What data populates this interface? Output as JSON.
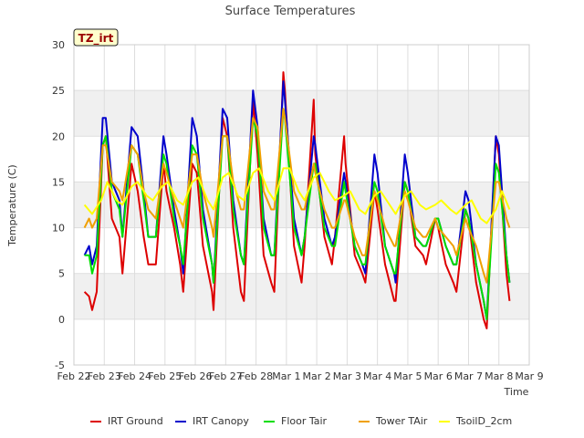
{
  "chart_data": {
    "type": "line",
    "title": "Surface Temperatures",
    "xlabel": "Time",
    "ylabel": "Temperature (C)",
    "ylim": [
      -5,
      30
    ],
    "yticks": [
      -5,
      0,
      5,
      10,
      15,
      20,
      25,
      30
    ],
    "xlim": [
      0,
      15
    ],
    "xticks": [
      {
        "v": 0,
        "label": "Feb 22"
      },
      {
        "v": 1,
        "label": "Feb 23"
      },
      {
        "v": 2,
        "label": "Feb 24"
      },
      {
        "v": 3,
        "label": "Feb 25"
      },
      {
        "v": 4,
        "label": "Feb 26"
      },
      {
        "v": 5,
        "label": "Feb 27"
      },
      {
        "v": 6,
        "label": "Feb 28"
      },
      {
        "v": 7,
        "label": "Mar 1"
      },
      {
        "v": 8,
        "label": "Mar 2"
      },
      {
        "v": 9,
        "label": "Mar 3"
      },
      {
        "v": 10,
        "label": "Mar 4"
      },
      {
        "v": 11,
        "label": "Mar 5"
      },
      {
        "v": 12,
        "label": "Mar 6"
      },
      {
        "v": 13,
        "label": "Mar 7"
      },
      {
        "v": 14,
        "label": "Mar 8"
      },
      {
        "v": 15,
        "label": "Mar 9"
      }
    ],
    "grid": true,
    "banded_background": true,
    "legend_position": "bottom",
    "annotation": "TZ_irt",
    "series": [
      {
        "name": "IRT Ground",
        "color": "#dd0000",
        "x": [
          0.35,
          0.5,
          0.6,
          0.75,
          0.95,
          1.05,
          1.25,
          1.5,
          1.6,
          1.9,
          2.1,
          2.3,
          2.45,
          2.7,
          2.95,
          3.05,
          3.3,
          3.5,
          3.6,
          3.9,
          4.05,
          4.25,
          4.55,
          4.6,
          4.9,
          5.05,
          5.25,
          5.5,
          5.6,
          5.9,
          6.05,
          6.25,
          6.5,
          6.6,
          6.9,
          6.95,
          7.25,
          7.5,
          7.6,
          7.9,
          7.95,
          8.25,
          8.5,
          8.6,
          8.9,
          8.95,
          9.25,
          9.5,
          9.6,
          9.9,
          10.0,
          10.25,
          10.55,
          10.6,
          10.9,
          11.0,
          11.25,
          11.5,
          11.6,
          11.9,
          12.0,
          12.25,
          12.5,
          12.6,
          12.9,
          13.0,
          13.25,
          13.5,
          13.6,
          13.9,
          14.0,
          14.25,
          14.35
        ],
        "y": [
          3,
          2.5,
          1,
          3,
          19,
          20,
          11,
          9,
          5,
          17,
          14,
          9,
          6,
          6,
          17,
          14,
          10,
          6,
          3,
          17,
          16,
          8,
          3,
          1,
          22,
          20,
          10,
          3,
          2,
          24,
          18,
          7,
          4,
          3,
          27,
          25,
          8,
          4,
          8,
          24,
          18,
          9,
          6,
          9,
          20,
          17,
          7,
          5,
          4,
          14,
          12,
          6,
          2,
          2,
          15,
          14,
          8,
          7,
          6,
          11,
          10,
          6,
          4,
          3,
          12,
          11,
          4,
          0,
          -1,
          20,
          18,
          5,
          2
        ]
      },
      {
        "name": "IRT Canopy",
        "color": "#0000cc",
        "x": [
          0.35,
          0.5,
          0.6,
          0.75,
          0.95,
          1.05,
          1.25,
          1.5,
          1.6,
          1.9,
          2.1,
          2.3,
          2.45,
          2.7,
          2.95,
          3.05,
          3.3,
          3.5,
          3.6,
          3.9,
          4.05,
          4.25,
          4.55,
          4.6,
          4.9,
          5.05,
          5.25,
          5.5,
          5.6,
          5.9,
          6.05,
          6.25,
          6.5,
          6.6,
          6.9,
          6.95,
          7.25,
          7.5,
          7.6,
          7.9,
          7.95,
          8.25,
          8.5,
          8.6,
          8.9,
          8.95,
          9.25,
          9.5,
          9.6,
          9.9,
          10.0,
          10.25,
          10.55,
          10.6,
          10.9,
          11.0,
          11.25,
          11.5,
          11.6,
          11.9,
          12.0,
          12.25,
          12.5,
          12.6,
          12.9,
          13.0,
          13.25,
          13.5,
          13.6,
          13.9,
          14.0,
          14.25,
          14.35
        ],
        "y": [
          7,
          8,
          6,
          8,
          22,
          22,
          15,
          13,
          9,
          21,
          20,
          14,
          9,
          9,
          20,
          18,
          12,
          8,
          5,
          22,
          20,
          12,
          6,
          4,
          23,
          22,
          13,
          7,
          6,
          25,
          21,
          11,
          7,
          7,
          26,
          24,
          11,
          7,
          9,
          20,
          19,
          11,
          8,
          9,
          16,
          15,
          8,
          6,
          5,
          18,
          16,
          8,
          5,
          4,
          18,
          16,
          9,
          8,
          8,
          11,
          11,
          8,
          6,
          6,
          14,
          13,
          6,
          2,
          0,
          20,
          19,
          7,
          4
        ]
      },
      {
        "name": "Floor Tair",
        "color": "#00dd00",
        "x": [
          0.35,
          0.5,
          0.6,
          0.75,
          0.95,
          1.05,
          1.25,
          1.5,
          1.6,
          1.9,
          2.1,
          2.3,
          2.45,
          2.7,
          2.95,
          3.05,
          3.3,
          3.5,
          3.6,
          3.9,
          4.05,
          4.25,
          4.55,
          4.6,
          4.9,
          5.05,
          5.25,
          5.5,
          5.6,
          5.9,
          6.05,
          6.25,
          6.5,
          6.6,
          6.9,
          6.95,
          7.25,
          7.5,
          7.6,
          7.9,
          7.95,
          8.25,
          8.5,
          8.6,
          8.9,
          8.95,
          9.25,
          9.5,
          9.6,
          9.9,
          10.0,
          10.25,
          10.55,
          10.6,
          10.9,
          11.0,
          11.25,
          11.5,
          11.6,
          11.9,
          12.0,
          12.25,
          12.5,
          12.6,
          12.9,
          13.0,
          13.25,
          13.5,
          13.6,
          13.9,
          14.0,
          14.25,
          14.35
        ],
        "y": [
          7,
          7,
          5,
          7,
          19,
          20,
          14,
          12,
          9,
          19,
          18,
          13,
          9,
          9,
          18,
          17,
          11,
          8,
          6,
          19,
          18,
          11,
          6,
          4,
          20,
          20,
          12,
          7,
          6,
          22,
          20,
          10,
          7,
          7,
          23,
          22,
          10,
          7,
          9,
          17,
          17,
          10,
          8,
          8,
          15,
          14,
          8,
          6,
          6,
          15,
          14,
          8,
          5,
          5,
          15,
          14,
          9,
          8,
          8,
          11,
          11,
          8,
          6,
          6,
          12,
          11,
          6,
          2,
          0,
          17,
          16,
          7,
          4
        ]
      },
      {
        "name": "Tower TAir",
        "color": "#f0a000",
        "x": [
          0.35,
          0.5,
          0.6,
          0.75,
          0.95,
          1.05,
          1.25,
          1.5,
          1.6,
          1.9,
          2.1,
          2.3,
          2.45,
          2.7,
          2.95,
          3.05,
          3.3,
          3.5,
          3.6,
          3.9,
          4.05,
          4.25,
          4.55,
          4.6,
          4.9,
          5.05,
          5.25,
          5.5,
          5.6,
          5.9,
          6.05,
          6.25,
          6.5,
          6.6,
          6.9,
          6.95,
          7.25,
          7.5,
          7.6,
          7.9,
          7.95,
          8.25,
          8.5,
          8.6,
          8.9,
          8.95,
          9.25,
          9.5,
          9.6,
          9.9,
          10.0,
          10.25,
          10.55,
          10.6,
          10.9,
          11.0,
          11.25,
          11.5,
          11.6,
          11.9,
          12.0,
          12.25,
          12.5,
          12.6,
          12.9,
          13.0,
          13.25,
          13.5,
          13.6,
          13.9,
          14.0,
          14.25,
          14.35
        ],
        "y": [
          10,
          11,
          10,
          11,
          19,
          19,
          15,
          14,
          13,
          19,
          18,
          14,
          12,
          11,
          17,
          16,
          13,
          11,
          10,
          18,
          18,
          14,
          10,
          9,
          20,
          20,
          15,
          12,
          12,
          22,
          21,
          14,
          12,
          12,
          23,
          22,
          14,
          12,
          12,
          17,
          16,
          12,
          10,
          10,
          13,
          13,
          9,
          7,
          7,
          14,
          13,
          10,
          8,
          8,
          14,
          13,
          10,
          9,
          9,
          11,
          10,
          9,
          8,
          7,
          11,
          10,
          8,
          5,
          4,
          15,
          15,
          11,
          10
        ]
      },
      {
        "name": "TsoilD_2cm",
        "color": "#ffff00",
        "x": [
          0.35,
          0.6,
          0.9,
          1.1,
          1.4,
          1.6,
          1.9,
          2.1,
          2.4,
          2.6,
          2.9,
          3.1,
          3.4,
          3.6,
          3.9,
          4.1,
          4.4,
          4.6,
          4.9,
          5.1,
          5.4,
          5.6,
          5.9,
          6.1,
          6.4,
          6.6,
          6.9,
          7.1,
          7.4,
          7.6,
          7.9,
          8.1,
          8.4,
          8.6,
          8.9,
          9.1,
          9.4,
          9.6,
          9.9,
          10.1,
          10.4,
          10.6,
          10.9,
          11.1,
          11.4,
          11.6,
          11.9,
          12.1,
          12.4,
          12.6,
          12.9,
          13.1,
          13.4,
          13.6,
          13.9,
          14.1,
          14.35
        ],
        "y": [
          12.5,
          11.5,
          13,
          15,
          13,
          12.5,
          14.5,
          15,
          13.5,
          13,
          14.5,
          15,
          13,
          12.5,
          15,
          15.5,
          13,
          12,
          15.5,
          16,
          13.5,
          13,
          16,
          16.5,
          14,
          13,
          16.5,
          16.5,
          14,
          13,
          15.5,
          16,
          14,
          13,
          13.5,
          14,
          12,
          11.5,
          13.5,
          14,
          12.5,
          11.5,
          13.5,
          14,
          12.5,
          12,
          12.5,
          13,
          12,
          11.5,
          12.5,
          13,
          11,
          10.5,
          12,
          14,
          12
        ]
      }
    ]
  }
}
